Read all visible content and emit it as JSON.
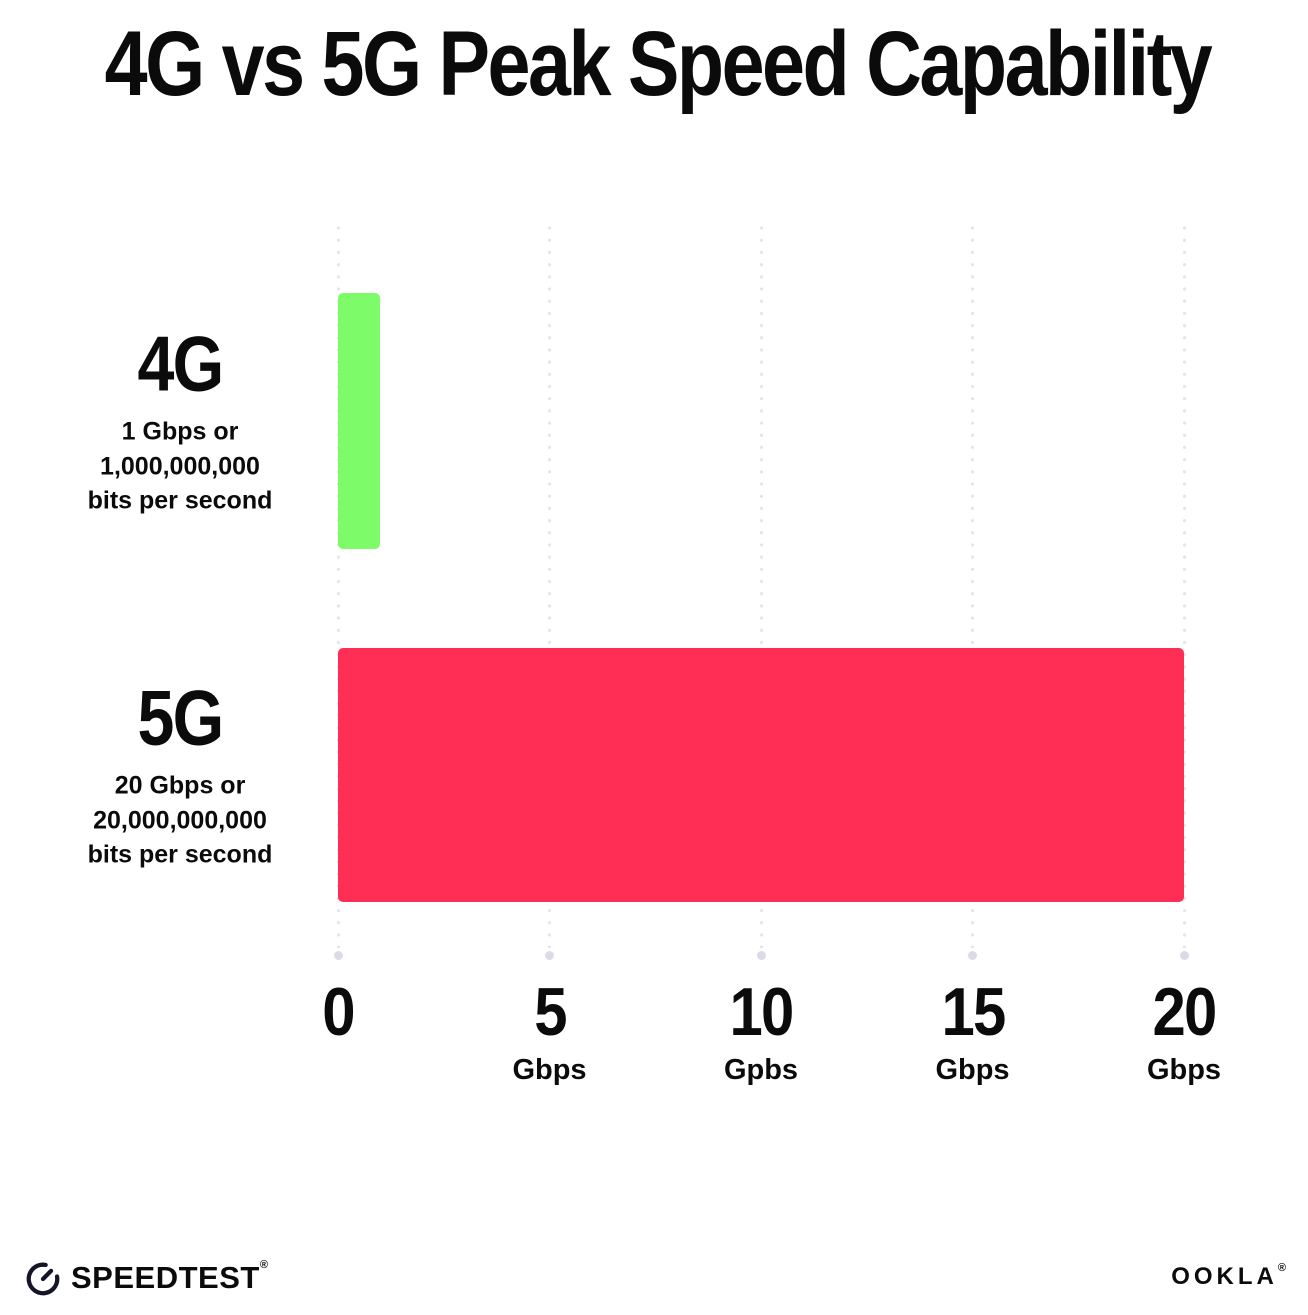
{
  "title": "4G vs 5G Peak Speed Capability",
  "chart_data": {
    "type": "bar",
    "orientation": "horizontal",
    "title": "4G vs 5G Peak Speed Capability",
    "categories": [
      "4G",
      "5G"
    ],
    "values": [
      1,
      20
    ],
    "xlabel_unit": "Gbps",
    "xlim": [
      0,
      20
    ],
    "grid": "vertical-dotted",
    "legend": "none",
    "rows": [
      {
        "name": "4G",
        "value": 1,
        "color": "#7EFB69",
        "desc_lines": [
          "1 Gbps or",
          "1,000,000,000",
          "bits per second"
        ]
      },
      {
        "name": "5G",
        "value": 20,
        "color": "#FF2E55",
        "desc_lines": [
          "20 Gbps or",
          "20,000,000,000",
          "bits per second"
        ]
      }
    ],
    "x_ticks": [
      {
        "value": "0",
        "unit": ""
      },
      {
        "value": "5",
        "unit": "Gbps"
      },
      {
        "value": "10",
        "unit": "Gpbs"
      },
      {
        "value": "15",
        "unit": "Gbps"
      },
      {
        "value": "20",
        "unit": "Gbps"
      }
    ]
  },
  "colors": {
    "background": "#FFFFFF",
    "text": "#0B0B0B",
    "grid_dot": "#E3E3EC",
    "grid_end_dot": "#DBDBE7",
    "bar_4g": "#7EFB69",
    "bar_5g": "#FF2E55",
    "logo": "#15152A"
  },
  "footer": {
    "speedtest": {
      "icon": "gauge-icon",
      "label": "SPEEDTEST",
      "mark": "®"
    },
    "ookla": {
      "label": "OOKLA",
      "mark": "®"
    }
  }
}
